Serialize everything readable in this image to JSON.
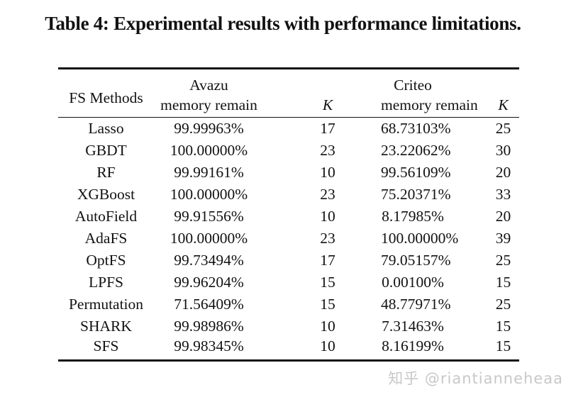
{
  "title": "Table 4: Experimental results with performance limitations.",
  "table": {
    "headers": {
      "method": "FS Methods",
      "avazu_group": "Avazu",
      "criteo_group": "Criteo",
      "avazu_sub": "memory remain",
      "criteo_sub": "memory remain",
      "k1": "K",
      "k2": "K"
    },
    "rows": [
      {
        "method": "Lasso",
        "avazu_memory": "99.99963%",
        "avazu_k": "17",
        "criteo_memory": "68.73103%",
        "criteo_k": "25"
      },
      {
        "method": "GBDT",
        "avazu_memory": "100.00000%",
        "avazu_k": "23",
        "criteo_memory": "23.22062%",
        "criteo_k": "30"
      },
      {
        "method": "RF",
        "avazu_memory": "99.99161%",
        "avazu_k": "10",
        "criteo_memory": "99.56109%",
        "criteo_k": "20"
      },
      {
        "method": "XGBoost",
        "avazu_memory": "100.00000%",
        "avazu_k": "23",
        "criteo_memory": "75.20371%",
        "criteo_k": "33"
      },
      {
        "method": "AutoField",
        "avazu_memory": "99.91556%",
        "avazu_k": "10",
        "criteo_memory": "8.17985%",
        "criteo_k": "20"
      },
      {
        "method": "AdaFS",
        "avazu_memory": "100.00000%",
        "avazu_k": "23",
        "criteo_memory": "100.00000%",
        "criteo_k": "39"
      },
      {
        "method": "OptFS",
        "avazu_memory": "99.73494%",
        "avazu_k": "17",
        "criteo_memory": "79.05157%",
        "criteo_k": "25"
      },
      {
        "method": "LPFS",
        "avazu_memory": "99.96204%",
        "avazu_k": "15",
        "criteo_memory": "0.00100%",
        "criteo_k": "15"
      },
      {
        "method": "Permutation",
        "avazu_memory": "71.56409%",
        "avazu_k": "15",
        "criteo_memory": "48.77971%",
        "criteo_k": "25"
      },
      {
        "method": "SHARK",
        "avazu_memory": "99.98986%",
        "avazu_k": "10",
        "criteo_memory": "7.31463%",
        "criteo_k": "15"
      },
      {
        "method": "SFS",
        "avazu_memory": "99.98345%",
        "avazu_k": "10",
        "criteo_memory": "8.16199%",
        "criteo_k": "15"
      }
    ]
  },
  "watermark": {
    "text": "知乎 @riantianneheaa"
  },
  "colors": {
    "text": "#121212",
    "rule": "#121212",
    "watermark": "#c8c8c8",
    "background": "#ffffff"
  }
}
